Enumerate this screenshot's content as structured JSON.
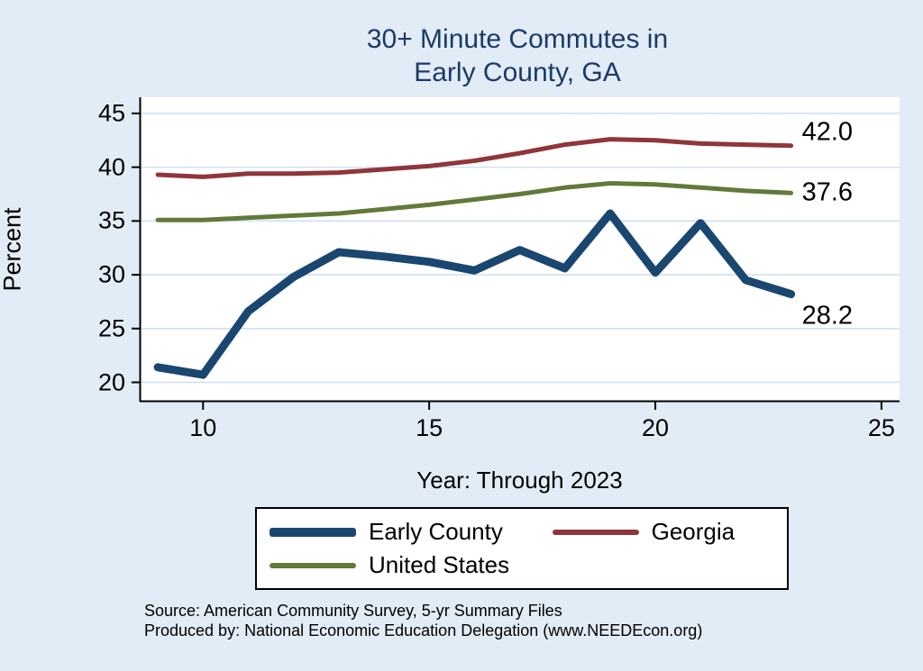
{
  "title": {
    "line1": "30+ Minute Commutes in",
    "line2": "Early County, GA"
  },
  "axes": {
    "y_label": "Percent",
    "x_label": "Year: Through 2023",
    "y_ticks": [
      20,
      25,
      30,
      35,
      40,
      45
    ],
    "x_ticks": [
      10,
      15,
      20,
      25
    ],
    "x_range": [
      8.6,
      25.4
    ],
    "y_range": [
      18.2,
      46.5
    ]
  },
  "chart_data": {
    "type": "line",
    "title": "30+ Minute Commutes in Early County, GA",
    "xlabel": "Year: Through 2023",
    "ylabel": "Percent",
    "xlim": [
      8.6,
      25.4
    ],
    "ylim": [
      18.2,
      46.5
    ],
    "grid": "horizontal",
    "legend_position": "bottom",
    "x": [
      9,
      10,
      11,
      12,
      13,
      14,
      15,
      16,
      17,
      18,
      19,
      20,
      21,
      22,
      23
    ],
    "series": [
      {
        "name": "Early County",
        "color": "#1a476f",
        "width": 9,
        "values": [
          21.4,
          20.7,
          26.6,
          29.8,
          32.1,
          31.7,
          31.2,
          30.4,
          32.3,
          30.6,
          35.7,
          30.2,
          34.8,
          29.5,
          28.2
        ],
        "end_label": "28.2"
      },
      {
        "name": "Georgia",
        "color": "#90353b",
        "width": 5,
        "values": [
          39.3,
          39.1,
          39.4,
          39.4,
          39.5,
          39.8,
          40.1,
          40.6,
          41.3,
          42.1,
          42.6,
          42.5,
          42.2,
          42.1,
          42.0
        ],
        "end_label": "42.0"
      },
      {
        "name": "United States",
        "color": "#637939",
        "width": 5,
        "values": [
          35.1,
          35.1,
          35.3,
          35.5,
          35.7,
          36.1,
          36.5,
          37.0,
          37.5,
          38.1,
          38.5,
          38.4,
          38.1,
          37.8,
          37.6
        ],
        "end_label": "37.6"
      }
    ]
  },
  "source": {
    "line1": "Source: American Community Survey, 5-yr Summary Files",
    "line2": "Produced by: National Economic Education Delegation (www.NEEDEcon.org)"
  },
  "colors": {
    "background": "#e2ecf7",
    "plot_background": "#ffffff",
    "grid": "#cfe0f0",
    "axis": "#000000",
    "title": "#1b3a66"
  }
}
